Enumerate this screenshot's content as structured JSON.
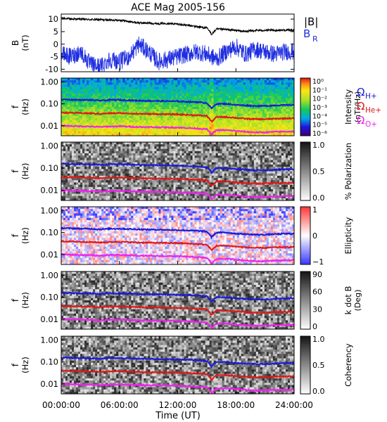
{
  "title": "ACE Mag 2005-156",
  "xlabel": "Time (UT)",
  "x_ticks": [
    "00:00:00",
    "06:00:00",
    "12:00:00",
    "18:00:00",
    "24:00:00"
  ],
  "x_ticks_hours": [
    0,
    6,
    12,
    18,
    24
  ],
  "time_range_hours": [
    0,
    24
  ],
  "colors": {
    "b_total": "#000000",
    "b_r": "#1f2ee0",
    "cyclotron_h": "#1a1ad8",
    "cyclotron_he": "#e01818",
    "cyclotron_o": "#ee22ee",
    "frame": "#000000"
  },
  "legend": {
    "b_total": "|B|",
    "b_r": "B",
    "b_r_sub": "R",
    "omega": "Ω",
    "h": "H+",
    "he": "He+",
    "o": "O+"
  },
  "chart_data": [
    {
      "type": "line",
      "ylabel": "B",
      "yunit": "(nT)",
      "ylim": [
        -11,
        12
      ],
      "y_ticks": [
        "10",
        "5",
        "0",
        "-5",
        "-10"
      ],
      "y_tick_values": [
        10,
        5,
        0,
        -5,
        -10
      ],
      "series": [
        {
          "name": "|B|",
          "x": [
            0,
            1,
            2,
            3,
            4,
            5,
            6,
            7,
            8,
            9,
            10,
            11,
            12,
            13,
            14,
            15,
            15.5,
            16,
            17,
            18,
            19,
            20,
            21,
            22,
            23,
            24
          ],
          "y": [
            10.5,
            10.0,
            10.0,
            9.8,
            9.8,
            9.6,
            9.6,
            9.0,
            8.5,
            8.4,
            8.2,
            8.3,
            8.0,
            7.5,
            7.0,
            6.5,
            4.0,
            6.0,
            5.8,
            5.5,
            5.0,
            5.5,
            5.5,
            5.5,
            5.6,
            5.6
          ]
        },
        {
          "name": "B_R",
          "x": [
            0,
            1,
            2,
            3,
            4,
            5,
            6,
            7,
            8,
            9,
            10,
            11,
            12,
            13,
            14,
            15,
            16,
            17,
            18,
            19,
            20,
            21,
            22,
            23,
            24
          ],
          "y": [
            -4,
            -5,
            -3,
            -8,
            -9,
            -6,
            -7,
            -5,
            0,
            -3,
            -7,
            -6,
            -5,
            -4,
            -3,
            -4,
            -6,
            -3,
            -1,
            -4,
            -2,
            -3,
            -4,
            -3,
            -3
          ]
        }
      ]
    },
    {
      "type": "heatmap",
      "ylabel": "f",
      "yunit": "(Hz)",
      "ylim": [
        0.0035,
        1.5
      ],
      "yscale": "log",
      "y_ticks": [
        "1.00",
        "0.10",
        "0.01"
      ],
      "y_tick_values": [
        1,
        0.1,
        0.01
      ],
      "colorbar": {
        "label": "Intensity",
        "unit": "(nT²/Hz)",
        "ticks": [
          "10⁰",
          "10⁻¹",
          "10⁻²",
          "10⁻³",
          "10⁻⁴",
          "10⁻⁵",
          "10⁻⁶"
        ],
        "colormap": "rainbow"
      },
      "style": "intensity"
    },
    {
      "type": "heatmap",
      "ylabel": "f",
      "yunit": "(Hz)",
      "ylim": [
        0.0035,
        1.5
      ],
      "yscale": "log",
      "y_ticks": [
        "1.00",
        "0.10",
        "0.01"
      ],
      "y_tick_values": [
        1,
        0.1,
        0.01
      ],
      "colorbar": {
        "label": "% Polarization",
        "unit": "",
        "ticks": [
          "1.0",
          "0.5",
          "0.0"
        ],
        "colormap": "gray"
      },
      "style": "gray"
    },
    {
      "type": "heatmap",
      "ylabel": "f",
      "yunit": "(Hz)",
      "ylim": [
        0.0035,
        1.5
      ],
      "yscale": "log",
      "y_ticks": [
        "1.00",
        "0.10",
        "0.01"
      ],
      "y_tick_values": [
        1,
        0.1,
        0.01
      ],
      "colorbar": {
        "label": "Ellipticity",
        "unit": "",
        "ticks": [
          "1",
          "0",
          "−1"
        ],
        "colormap": "blue-white-red"
      },
      "style": "ellipticity"
    },
    {
      "type": "heatmap",
      "ylabel": "f",
      "yunit": "(Hz)",
      "ylim": [
        0.0035,
        1.5
      ],
      "yscale": "log",
      "y_ticks": [
        "1.00",
        "0.10",
        "0.01"
      ],
      "y_tick_values": [
        1,
        0.1,
        0.01
      ],
      "colorbar": {
        "label": "k dot B",
        "unit": "(Deg)",
        "ticks": [
          "90",
          "60",
          "30",
          "0"
        ],
        "colormap": "gray"
      },
      "style": "gray"
    },
    {
      "type": "heatmap",
      "ylabel": "f",
      "yunit": "(Hz)",
      "ylim": [
        0.0035,
        1.5
      ],
      "yscale": "log",
      "y_ticks": [
        "1.00",
        "0.10",
        "0.01"
      ],
      "y_tick_values": [
        1,
        0.1,
        0.01
      ],
      "colorbar": {
        "label": "Coherency",
        "unit": "",
        "ticks": [
          "1.0",
          "0.5",
          "0.0"
        ],
        "colormap": "gray"
      },
      "style": "gray"
    }
  ],
  "cyclotron_lines": {
    "x": [
      0,
      2,
      3,
      4,
      5,
      6,
      8,
      10,
      12,
      14,
      15,
      15.5,
      16,
      17,
      18,
      19,
      20,
      21,
      22,
      24
    ],
    "h_plus_hz": [
      0.16,
      0.15,
      0.15,
      0.14,
      0.15,
      0.15,
      0.14,
      0.135,
      0.13,
      0.12,
      0.11,
      0.06,
      0.1,
      0.1,
      0.09,
      0.085,
      0.08,
      0.08,
      0.085,
      0.09
    ],
    "he_plus_hz": [
      0.04,
      0.038,
      0.037,
      0.035,
      0.037,
      0.038,
      0.035,
      0.034,
      0.033,
      0.03,
      0.028,
      0.015,
      0.025,
      0.025,
      0.023,
      0.021,
      0.02,
      0.02,
      0.021,
      0.022
    ],
    "o_plus_hz": [
      0.01,
      0.0095,
      0.0093,
      0.0088,
      0.0093,
      0.0095,
      0.0088,
      0.0085,
      0.0083,
      0.0075,
      0.007,
      0.0038,
      0.0063,
      0.0063,
      0.0058,
      0.0053,
      0.005,
      0.005,
      0.0053,
      0.0055
    ]
  }
}
